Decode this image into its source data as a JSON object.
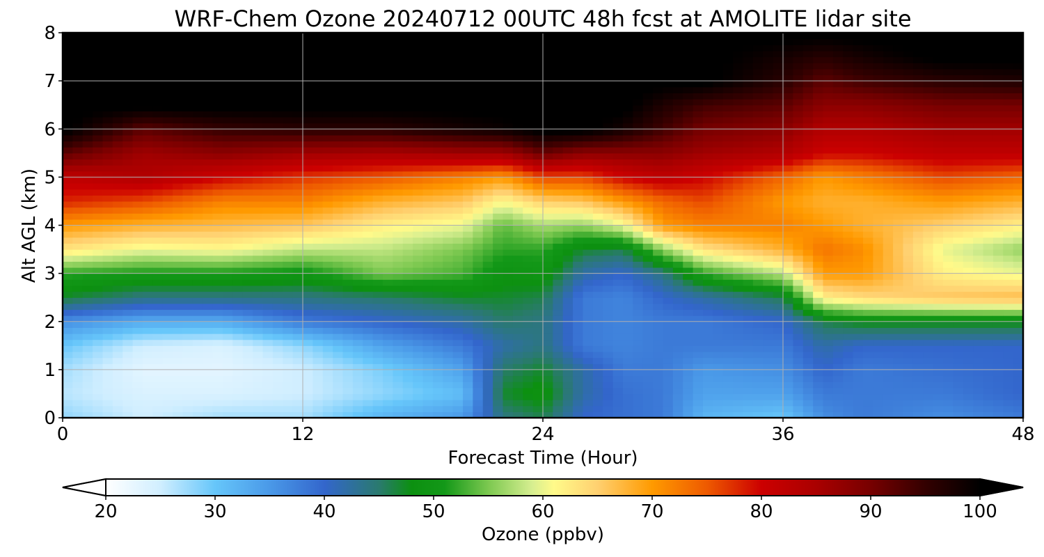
{
  "chart_data": {
    "type": "heatmap",
    "title": "WRF-Chem Ozone  20240712 00UTC 48h fcst at AMOLITE lidar site",
    "xlabel": "Forecast Time (Hour)",
    "ylabel": "Alt AGL (km)",
    "xlim": [
      0,
      48
    ],
    "ylim": [
      0,
      8
    ],
    "x_ticks": [
      0,
      12,
      24,
      36,
      48
    ],
    "y_ticks": [
      0,
      1,
      2,
      3,
      4,
      5,
      6,
      7,
      8
    ],
    "grid": true,
    "x": [
      0,
      4,
      8,
      12,
      16,
      20,
      22,
      24,
      26,
      28,
      30,
      32,
      36,
      38,
      40,
      44,
      48
    ],
    "y": [
      0,
      0.5,
      1,
      1.5,
      2,
      2.5,
      3,
      3.5,
      4,
      4.5,
      5,
      5.5,
      6,
      6.5,
      7,
      7.5,
      8
    ],
    "z_by_time": [
      [
        28,
        26,
        27,
        30,
        36,
        47,
        52,
        63,
        70,
        78,
        82,
        92,
        101,
        101,
        101,
        101,
        101
      ],
      [
        25,
        24,
        23,
        25,
        33,
        44,
        51,
        60,
        68,
        76,
        84,
        86,
        92,
        101,
        101,
        101,
        101
      ],
      [
        27,
        24,
        23,
        24,
        33,
        44,
        51,
        61,
        67,
        72,
        80,
        88,
        95,
        101,
        101,
        101,
        101
      ],
      [
        27,
        25,
        25,
        28,
        38,
        44,
        50,
        58,
        66,
        72,
        77,
        86,
        96,
        101,
        101,
        101,
        101
      ],
      [
        32,
        28,
        29,
        34,
        40,
        45,
        55,
        58,
        62,
        68,
        75,
        85,
        96,
        101,
        101,
        101,
        101
      ],
      [
        35,
        31,
        34,
        38,
        42,
        47,
        53,
        55,
        60,
        66,
        72,
        86,
        98,
        101,
        101,
        101,
        101
      ],
      [
        44,
        47,
        45,
        42,
        45,
        47,
        49,
        52,
        54,
        61,
        70,
        86,
        99,
        101,
        101,
        101,
        101
      ],
      [
        46,
        49,
        47,
        44,
        44,
        46,
        50,
        52,
        57,
        65,
        76,
        91,
        101,
        101,
        101,
        101,
        101
      ],
      [
        40,
        42,
        42,
        38,
        38,
        38,
        42,
        47,
        56,
        66,
        76,
        88,
        101,
        101,
        101,
        101,
        101
      ],
      [
        39,
        39,
        38,
        37,
        37,
        37,
        40,
        46,
        60,
        70,
        80,
        88,
        98,
        101,
        101,
        101,
        101
      ],
      [
        38,
        38,
        38,
        38,
        38,
        40,
        44,
        56,
        70,
        74,
        82,
        88,
        94,
        97,
        101,
        101,
        101
      ],
      [
        32,
        34,
        35,
        38,
        38,
        42,
        52,
        63,
        72,
        76,
        80,
        86,
        90,
        94,
        101,
        101,
        101
      ],
      [
        30,
        34,
        36,
        38,
        40,
        46,
        58,
        68,
        72,
        70,
        74,
        84,
        88,
        92,
        96,
        98,
        101
      ],
      [
        36,
        38,
        40,
        42,
        46,
        62,
        70,
        73,
        70,
        68,
        70,
        80,
        84,
        88,
        92,
        96,
        101
      ],
      [
        38,
        38,
        38,
        40,
        48,
        64,
        70,
        71,
        68,
        68,
        72,
        80,
        84,
        88,
        94,
        98,
        101
      ],
      [
        36,
        38,
        39,
        40,
        48,
        66,
        62,
        60,
        65,
        70,
        76,
        82,
        86,
        90,
        96,
        101,
        101
      ],
      [
        38,
        40,
        40,
        40,
        48,
        67,
        60,
        56,
        62,
        68,
        74,
        82,
        86,
        90,
        97,
        101,
        101
      ]
    ],
    "colorbar": {
      "label": "Ozone  (ppbv)",
      "ticks": [
        20,
        30,
        40,
        50,
        60,
        70,
        80,
        90,
        100
      ],
      "vmin": 20,
      "vmax": 100,
      "extend": "both",
      "stops": [
        [
          20,
          "#ffffff"
        ],
        [
          25,
          "#d0eeff"
        ],
        [
          30,
          "#66c6fa"
        ],
        [
          35,
          "#4a99e8"
        ],
        [
          40,
          "#3366cc"
        ],
        [
          45,
          "#2a7a6e"
        ],
        [
          48,
          "#0c9010"
        ],
        [
          51,
          "#139818"
        ],
        [
          55,
          "#7cc850"
        ],
        [
          59,
          "#d6ee90"
        ],
        [
          61,
          "#fffa8a"
        ],
        [
          65,
          "#ffd070"
        ],
        [
          70,
          "#ff9a00"
        ],
        [
          75,
          "#ee5a00"
        ],
        [
          80,
          "#cc0000"
        ],
        [
          85,
          "#aa0000"
        ],
        [
          90,
          "#770000"
        ],
        [
          95,
          "#330000"
        ],
        [
          100,
          "#000000"
        ]
      ]
    }
  }
}
